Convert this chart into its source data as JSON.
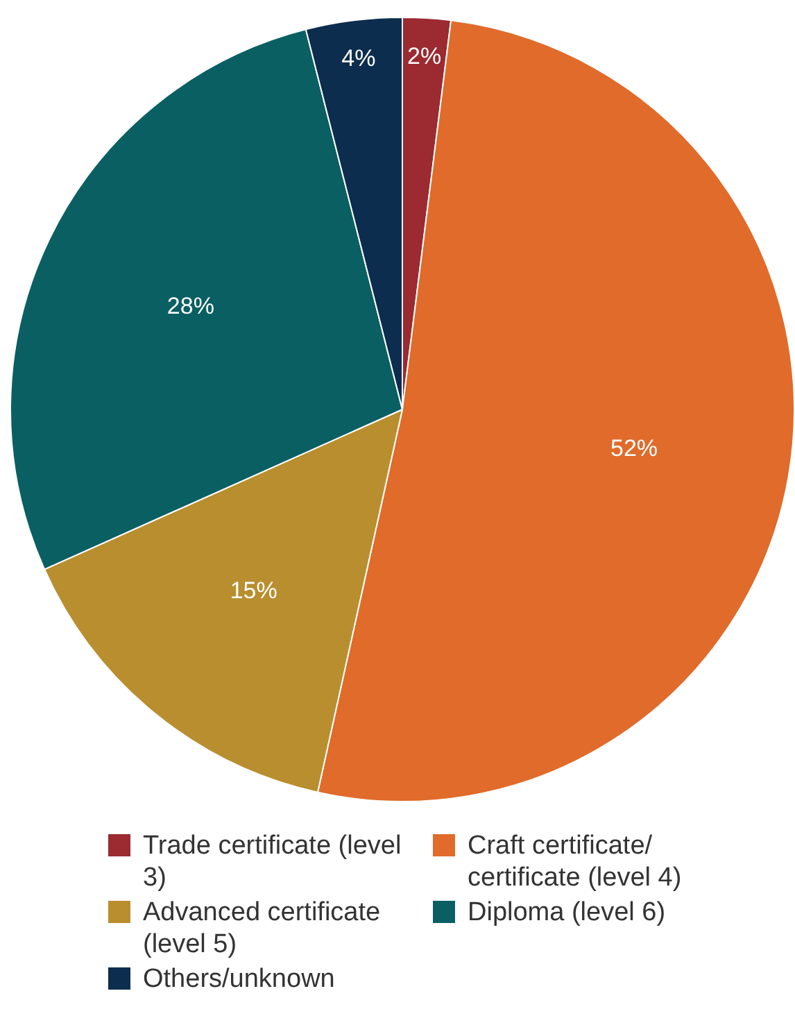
{
  "chart_data": {
    "type": "pie",
    "categories": [
      "Trade certificate (level 3)",
      "Craft certificate/ certificate (level 4)",
      "Advanced certificate (level 5)",
      "Diploma (level 6)",
      "Others/unknown"
    ],
    "values": [
      2,
      52,
      15,
      28,
      4
    ],
    "colors": [
      "#9b2a31",
      "#e06b2a",
      "#b98e2e",
      "#0a5f63",
      "#0d2d4e"
    ],
    "value_labels": [
      "2%",
      "52%",
      "15%",
      "28%",
      "4%"
    ],
    "legend": "bottom"
  }
}
